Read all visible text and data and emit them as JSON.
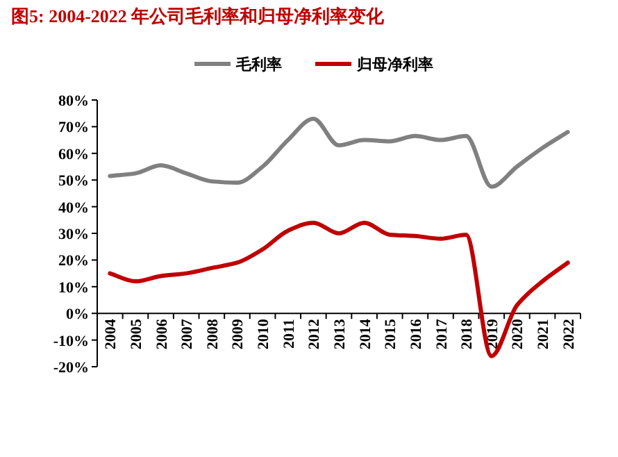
{
  "chart_data": {
    "type": "line",
    "title": "图5:   2004-2022 年公司毛利率和归母净利率变化",
    "categories": [
      "2004",
      "2005",
      "2006",
      "2007",
      "2008",
      "2009",
      "2010",
      "2011",
      "2012",
      "2013",
      "2014",
      "2015",
      "2016",
      "2017",
      "2018",
      "2019",
      "2020",
      "2021",
      "2022"
    ],
    "series": [
      {
        "name": "毛利率",
        "color": "#808080",
        "values": [
          51.5,
          52.5,
          55.5,
          52.5,
          49.5,
          49,
          55,
          65,
          73,
          63,
          65,
          64.5,
          66.5,
          65,
          66.5,
          47.5,
          55,
          62,
          68
        ]
      },
      {
        "name": "归母净利率",
        "color": "#c00000",
        "values": [
          15,
          12,
          14,
          15,
          17,
          19,
          24,
          31,
          34,
          30,
          34,
          29.5,
          29,
          28,
          29.5,
          -16,
          3,
          12,
          19
        ]
      }
    ],
    "ylim": [
      -20,
      80
    ],
    "yticks": [
      {
        "value": -20,
        "label": "-20%"
      },
      {
        "value": -10,
        "label": "-10%"
      },
      {
        "value": 0,
        "label": "0%"
      },
      {
        "value": 10,
        "label": "10%"
      },
      {
        "value": 20,
        "label": "20%"
      },
      {
        "value": 30,
        "label": "30%"
      },
      {
        "value": 40,
        "label": "40%"
      },
      {
        "value": 50,
        "label": "50%"
      },
      {
        "value": 60,
        "label": "60%"
      },
      {
        "value": 70,
        "label": "70%"
      },
      {
        "value": 80,
        "label": "80%"
      }
    ],
    "grid": false,
    "legend": "top",
    "marker": "none",
    "line_style": "solid"
  }
}
